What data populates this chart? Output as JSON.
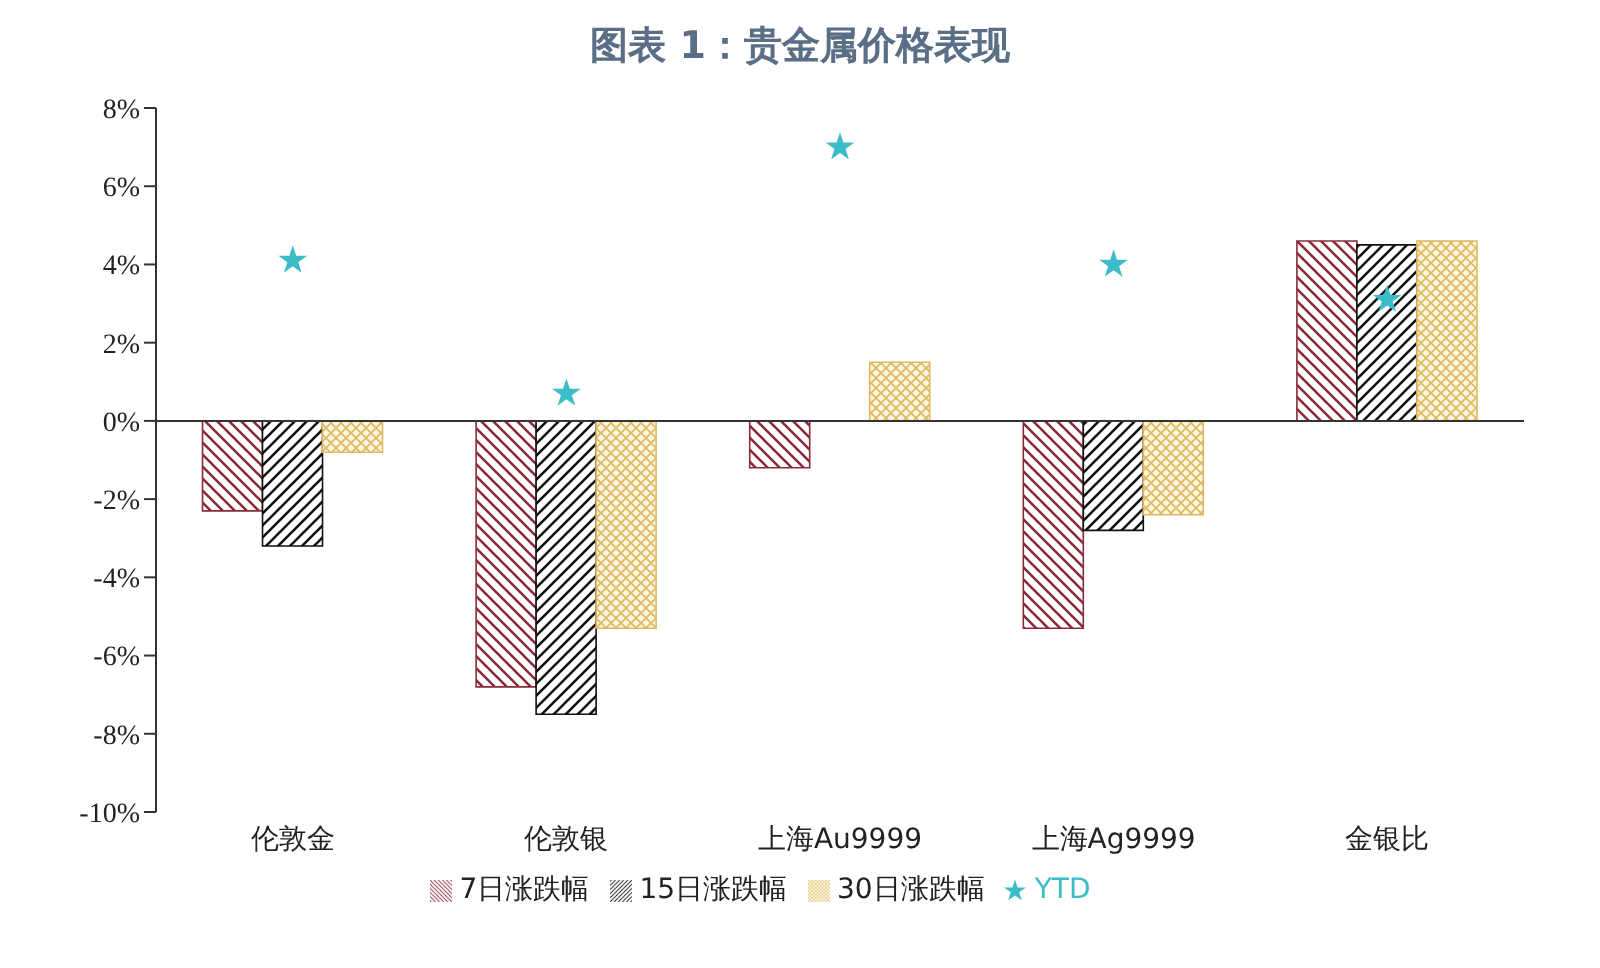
{
  "chart_data": {
    "type": "bar",
    "title": "图表 1：贵金属价格表现",
    "categories": [
      "伦敦金",
      "伦敦银",
      "上海Au9999",
      "上海Ag9999",
      "金银比"
    ],
    "series": [
      {
        "name": "7日涨跌幅",
        "color": "#8b2a3a",
        "values": [
          -2.3,
          -6.8,
          -1.2,
          -5.3,
          4.6
        ]
      },
      {
        "name": "15日涨跌幅",
        "color": "#111111",
        "values": [
          -3.2,
          -7.5,
          0,
          -2.8,
          4.5
        ]
      },
      {
        "name": "30日涨跌幅",
        "color": "#e0b860",
        "values": [
          -0.8,
          -5.3,
          1.5,
          -2.4,
          4.6
        ]
      },
      {
        "name": "YTD",
        "type": "scatter",
        "marker": "star",
        "color": "#3cbcc8",
        "values": [
          4.1,
          0.7,
          7.0,
          4.0,
          3.1
        ]
      }
    ],
    "ylim": [
      -10,
      8
    ],
    "yticks": [
      {
        "value": -10,
        "label": "-10%"
      },
      {
        "value": -8,
        "label": "-8%"
      },
      {
        "value": -6,
        "label": "-6%"
      },
      {
        "value": -4,
        "label": "-4%"
      },
      {
        "value": -2,
        "label": "-2%"
      },
      {
        "value": 0,
        "label": "0%"
      },
      {
        "value": 2,
        "label": "2%"
      },
      {
        "value": 4,
        "label": "4%"
      },
      {
        "value": 6,
        "label": "6%"
      },
      {
        "value": 8,
        "label": "8%"
      }
    ],
    "legend": "bottom"
  }
}
